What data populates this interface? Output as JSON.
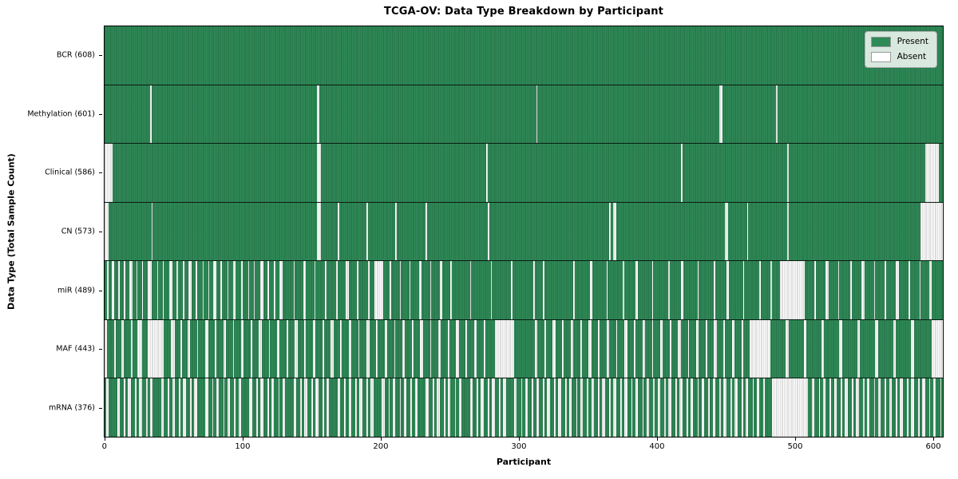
{
  "title": "TCGA-OV: Data Type Breakdown by Participant",
  "axes": {
    "x_label": "Participant",
    "y_label": "Data Type (Total Sample Count)"
  },
  "legend": {
    "items": [
      {
        "label": "Present",
        "color": "#2e8b57"
      },
      {
        "label": "Absent",
        "color": "#ffffff"
      }
    ]
  },
  "colors": {
    "present": "#2e8b57",
    "absent": "#ffffff",
    "axis": "#000000"
  },
  "chart_data": {
    "type": "heatmap",
    "title": "TCGA-OV: Data Type Breakdown by Participant",
    "xlabel": "Participant",
    "ylabel": "Data Type (Total Sample Count)",
    "participants": 608,
    "x_ticks": [
      0,
      100,
      200,
      300,
      400,
      500,
      600
    ],
    "legend_entries": [
      "Present",
      "Absent"
    ],
    "legend_position": "upper right",
    "grid": false,
    "rows": [
      {
        "data_type": "BCR",
        "label": "BCR (608)",
        "present_count": 608,
        "absent_count": 0,
        "absent_ranges": ""
      },
      {
        "data_type": "Methylation",
        "label": "Methylation (601)",
        "present_count": 601,
        "absent_count": 7,
        "absent_ranges": "33,154-155,313,446-447,487"
      },
      {
        "data_type": "Clinical",
        "label": "Clinical (586)",
        "present_count": 586,
        "absent_count": 22,
        "absent_ranges": "0-5,154-156,277,418,495,595-604"
      },
      {
        "data_type": "CN",
        "label": "CN (573)",
        "present_count": 573,
        "absent_count": 35,
        "absent_ranges": "0-2,34,154-156,169,190,211,233,278,366,369-370,450-451,466,495,592-607"
      },
      {
        "data_type": "miR",
        "label": "miR (489)",
        "present_count": 489,
        "absent_count": 119,
        "absent_ranges": "2,5-6,10,14,18-19,23,27,31-33,38,42,47-48,52,57,61-62,66,71,75,79-80,84,89,93-94,99,104,108,113-114,118,123,127-128,137,144-145,152,160,168,175-176,183,191,196-201,207,214,221,228-229,236,243-244,251,265,280,295,311,318,340,352-353,364,376,385-386,397,409,418-419,430,442,451-452,463,475,483,490-507,515,523-524,532,541,549-550,558,566,574-575,583,591,598-599"
      },
      {
        "data_type": "MAF",
        "label": "MAF (443)",
        "present_count": 443,
        "absent_count": 165,
        "absent_ranges": "0-1,7,12-13,19,24-26,31-42,48-50,55,60-61,67,73-74,80,86-87,93,99-100,106,112-113,119,125-126,132,138-139,145,151-152,158,164-165,171,177-178,184,190-191,197,203-204,210,216-217,223,229-230,236,242-243,249,255-256,262,268-269,275,283-296,312-313,319,325-326,332,338-339,345,351-352,358,364-365,371,377-378,384,390-391,397,403-404,410,416-417,423,429-430,436,442-443,449,455-456,462,468-482,494-495,507-508,520-521,533-534,546-547,559-560,572-573,585-586,600-607"
      },
      {
        "data_type": "mRNA",
        "label": "mRNA (376)",
        "present_count": 376,
        "absent_count": 232,
        "absent_ranges": "1-2,9-10,14,17-18,22,25-26,30,33-34,41-42,46,49-50,54,57-58,62,65-66,73-74,78,81-82,86,89-90,94,97-98,105-106,110,113-114,118,121-122,126,129-130,137-138,142,145-146,150,153-154,158,161-162,169-170,174,177-178,182,185-186,190,193-194,201-202,206,209-210,214,217-218,222,225-226,233-234,238,241-242,246,249-250,254,257-258,265-266,270,273-274,278,281-282,286,289-290,297-298,302,305-306,310,313-314,318,321-322,326,329-330,334,337-338,342,345-346,350,353-354,358,361-362,366,369-370,374,377-378,382,385-386,390,393-394,398,401-402,406,409-410,414,417-418,422,425-426,430,433-434,438,441-442,446,449-450,454,457-458,462,465-466,470,473-474,478,484-509,513-514,518,521-522,526,529-530,534,537-538,542,545-546,550,553-554,558,561-562,566,569-570,574,577-578,582,585-586,590,593-594,598,601-602,606"
      }
    ]
  }
}
